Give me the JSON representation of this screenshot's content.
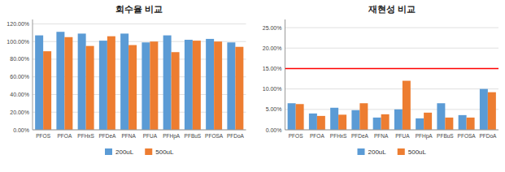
{
  "chart_data": [
    {
      "type": "bar",
      "title": "회수율 비교",
      "categories": [
        "PFOS",
        "PFOA",
        "PFHxS",
        "PFDeA",
        "PFNA",
        "PFUA",
        "PFHpA",
        "PFBuS",
        "PFOSA",
        "PFDoA"
      ],
      "series": [
        {
          "name": "200uL",
          "color": "#5B9BD5",
          "values": [
            1.07,
            1.11,
            1.09,
            1.01,
            1.09,
            0.99,
            1.07,
            1.02,
            1.03,
            0.99
          ]
        },
        {
          "name": "500uL",
          "color": "#ED7D31",
          "values": [
            0.89,
            1.05,
            0.95,
            1.06,
            0.96,
            1.0,
            0.88,
            1.01,
            1.0,
            0.94
          ]
        }
      ],
      "ylim": [
        0,
        1.25
      ],
      "yticks": [
        {
          "value": 0.0,
          "label": "0.00%"
        },
        {
          "value": 0.2,
          "label": "20.00%"
        },
        {
          "value": 0.4,
          "label": "40.00%"
        },
        {
          "value": 0.6,
          "label": "60.00%"
        },
        {
          "value": 0.8,
          "label": "80.00%"
        },
        {
          "value": 1.0,
          "label": "100.00%"
        },
        {
          "value": 1.2,
          "label": "120.00%"
        }
      ],
      "grid": true,
      "legend": "bottom"
    },
    {
      "type": "bar",
      "title": "재현성 비교",
      "categories": [
        "PFOS",
        "PFOA",
        "PFHxS",
        "PFDeA",
        "PFNA",
        "PFUA",
        "PFHpA",
        "PFBuS",
        "PFOSA",
        "PFDoA"
      ],
      "series": [
        {
          "name": "200uL",
          "color": "#5B9BD5",
          "values": [
            0.065,
            0.04,
            0.054,
            0.048,
            0.03,
            0.05,
            0.028,
            0.065,
            0.036,
            0.1
          ]
        },
        {
          "name": "500uL",
          "color": "#ED7D31",
          "values": [
            0.063,
            0.034,
            0.037,
            0.065,
            0.038,
            0.12,
            0.042,
            0.03,
            0.03,
            0.092
          ]
        }
      ],
      "ylim": [
        0,
        0.27
      ],
      "yticks": [
        {
          "value": 0.0,
          "label": "0.00%"
        },
        {
          "value": 0.05,
          "label": "5.00%"
        },
        {
          "value": 0.1,
          "label": "10.00%"
        },
        {
          "value": 0.15,
          "label": "15.00%"
        },
        {
          "value": 0.2,
          "label": "20.00%"
        },
        {
          "value": 0.25,
          "label": "25.00%"
        }
      ],
      "reference_line": {
        "value": 0.15,
        "color": "red"
      },
      "grid": true,
      "legend": "bottom"
    }
  ]
}
